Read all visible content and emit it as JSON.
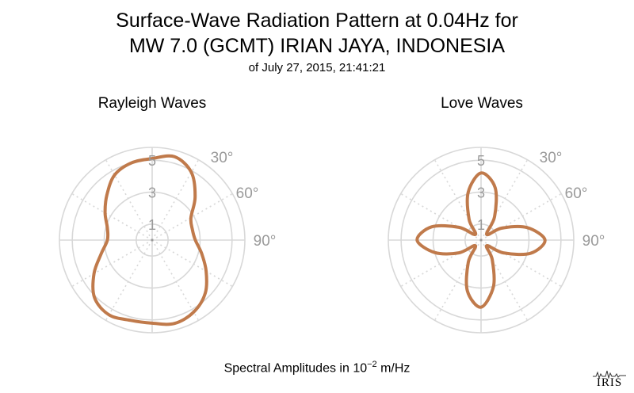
{
  "header": {
    "title_line1": "Surface-Wave Radiation Pattern at 0.04Hz for",
    "title_line2": "MW 7.0 (GCMT) IRIAN JAYA, INDONESIA",
    "subtitle": "of July 27, 2015, 21:41:21"
  },
  "footer": {
    "label_prefix": "Spectral Amplitudes in ",
    "base": "10",
    "exponent": "−2",
    "unit": " m/Hz"
  },
  "logo": {
    "text": "IRIS"
  },
  "colors": {
    "curve": "#c07a4b",
    "grid": "#d8d8d8",
    "tick_text": "#9a9a9a"
  },
  "chart_data": [
    {
      "type": "polar-line",
      "title": "Rayleigh Waves",
      "radial_ticks": [
        1,
        3,
        5
      ],
      "angle_ticks": [
        "30°",
        "60°",
        "90°"
      ],
      "rmax": 5.8,
      "series": [
        {
          "angles_deg": [
            0,
            15,
            30,
            45,
            60,
            75,
            90,
            105,
            120,
            135,
            150,
            165,
            180,
            195,
            210,
            225,
            240,
            255,
            270,
            285,
            300,
            315,
            330,
            345
          ],
          "values": [
            5.1,
            5.4,
            4.9,
            3.8,
            2.8,
            2.6,
            2.7,
            3.2,
            3.9,
            4.7,
            5.2,
            5.4,
            5.2,
            5.2,
            5.4,
            5.1,
            4.2,
            3.3,
            2.8,
            2.9,
            3.4,
            4.0,
            4.7,
            5.0
          ]
        }
      ]
    },
    {
      "type": "polar-line",
      "title": "Love Waves",
      "radial_ticks": [
        1,
        3,
        5
      ],
      "angle_ticks": [
        "30°",
        "60°",
        "90°"
      ],
      "rmax": 5.8,
      "series": [
        {
          "angles_deg": [
            0,
            15,
            30,
            45,
            60,
            75,
            90,
            105,
            120,
            135,
            150,
            165,
            180,
            195,
            210,
            225,
            240,
            255,
            270,
            285,
            300,
            315,
            330,
            345
          ],
          "values": [
            4.2,
            3.4,
            1.7,
            0.5,
            1.5,
            3.0,
            4.0,
            3.2,
            1.6,
            0.5,
            1.4,
            3.0,
            4.2,
            3.3,
            1.6,
            0.5,
            1.6,
            3.0,
            4.0,
            3.2,
            1.6,
            0.5,
            1.5,
            3.1
          ]
        }
      ]
    }
  ]
}
